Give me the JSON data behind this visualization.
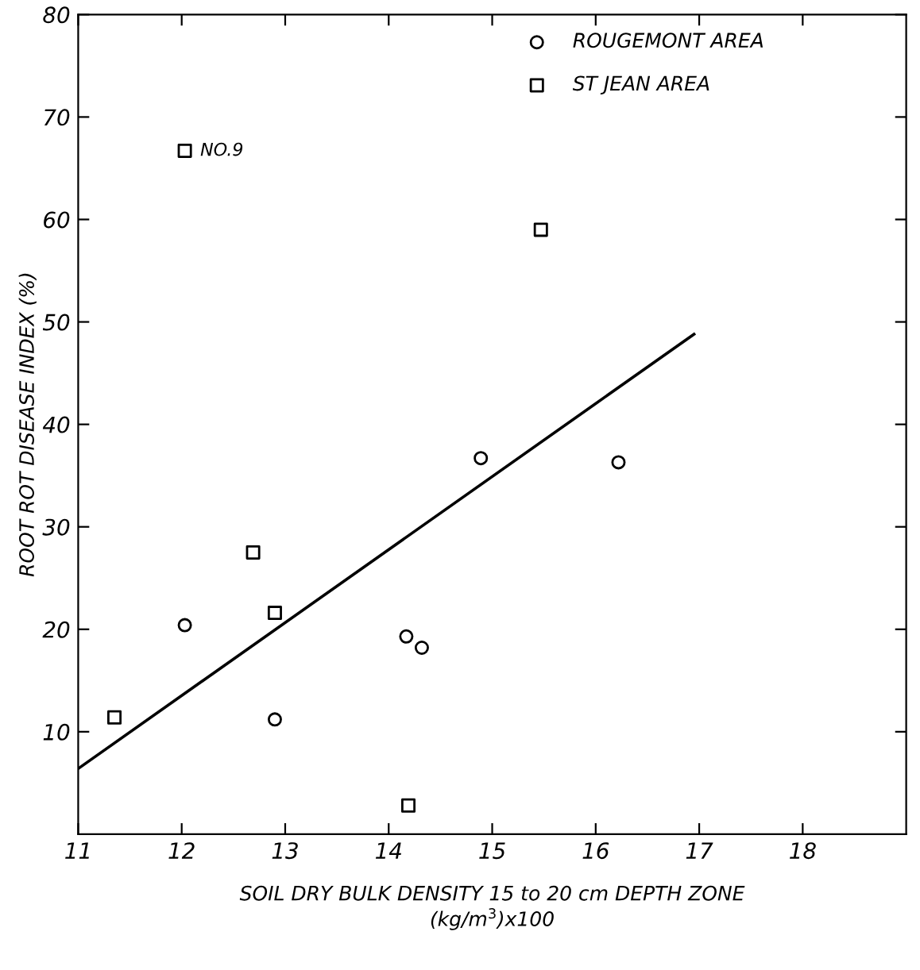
{
  "chart_data": {
    "type": "scatter",
    "xlabel": "SOIL DRY BULK DENSITY 15 to 20 cm DEPTH ZONE\n(kg/m$^{3}$)x100",
    "ylabel": "ROOT ROT DISEASE INDEX (%)",
    "xlim": [
      11,
      19
    ],
    "xticks": [
      11,
      12,
      13,
      14,
      15,
      16,
      17,
      18
    ],
    "ylim": [
      0,
      80
    ],
    "yticks": [
      10,
      20,
      30,
      40,
      50,
      60,
      70,
      80
    ],
    "grid": false,
    "legend": "top right",
    "series": [
      {
        "name": "ROUGEMONT AREA",
        "color": "#000000",
        "marker": "circle",
        "x": [
          12.03,
          12.9,
          14.17,
          14.32,
          14.89,
          16.22
        ],
        "values": [
          20.4,
          11.2,
          19.3,
          18.2,
          36.7,
          36.3
        ]
      },
      {
        "name": "ST JEAN AREA",
        "color": "#000000",
        "marker": "square",
        "x": [
          11.35,
          12.03,
          12.69,
          12.9,
          14.19,
          15.47
        ],
        "values": [
          11.4,
          66.7,
          27.5,
          21.6,
          2.8,
          59.0
        ]
      },
      {
        "type": "line",
        "color": "#000000",
        "marker": "none",
        "line_style": "solid",
        "x": [
          11,
          16.95
        ],
        "values": [
          6.4,
          48.8
        ]
      }
    ],
    "annotations": [
      {
        "text": "NO.9",
        "x": 12.03,
        "y": 66.7
      }
    ]
  }
}
